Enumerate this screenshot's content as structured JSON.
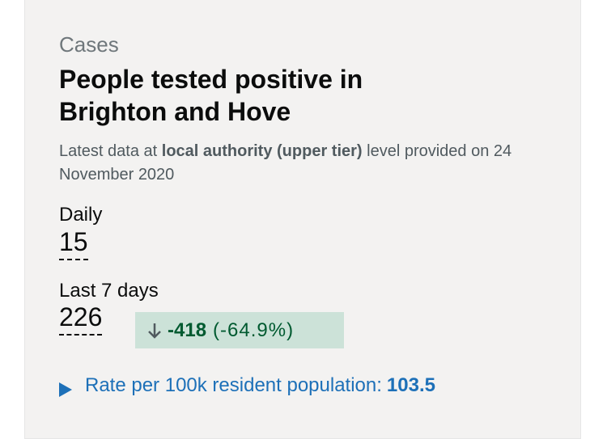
{
  "caption": "Cases",
  "title": "People tested positive in Brighton and Hove",
  "subtitle": {
    "before": "Latest data at",
    "bold": "local authority (upper tier)",
    "after": "level provided on 24 November 2020"
  },
  "daily": {
    "label": "Daily",
    "value": "15"
  },
  "last7": {
    "label": "Last 7 days",
    "value": "226",
    "change": "-418",
    "percent": "(-64.9%)"
  },
  "rate": {
    "label": "Rate per 100k resident population:",
    "value": "103.5"
  }
}
